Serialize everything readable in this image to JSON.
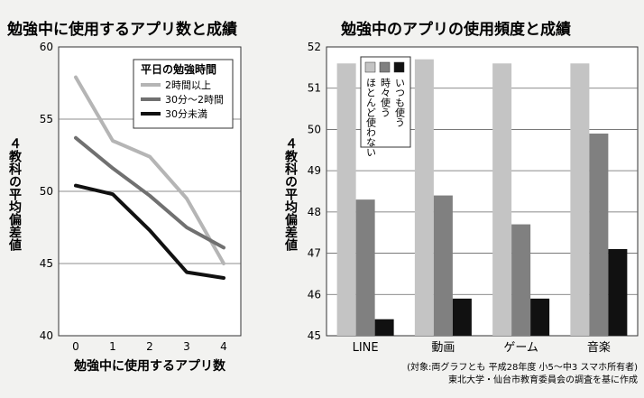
{
  "chart_data": [
    {
      "type": "line",
      "title": "勉強中に使用するアプリ数と成績",
      "xlabel": "勉強中に使用するアプリ数",
      "ylabel": "４教科の平均偏差値",
      "x": [
        "0",
        "1",
        "2",
        "3",
        "4"
      ],
      "y_ticks": [
        "40",
        "45",
        "50",
        "55",
        "60"
      ],
      "ylim": [
        40,
        60
      ],
      "legend_title": "平日の勉強時間",
      "series": [
        {
          "name": "2時間以上",
          "color": "#b5b5b5",
          "values": [
            57.9,
            53.5,
            52.4,
            49.5,
            45.0
          ]
        },
        {
          "name": "30分～2時間",
          "color": "#707070",
          "values": [
            53.7,
            51.6,
            49.7,
            47.5,
            46.1
          ]
        },
        {
          "name": "30分未満",
          "color": "#111111",
          "values": [
            50.4,
            49.8,
            47.3,
            44.4,
            44.0
          ]
        }
      ]
    },
    {
      "type": "bar",
      "title": "勉強中のアプリの使用頻度と成績",
      "ylabel": "４教科の平均偏差値",
      "categories": [
        "LINE",
        "動画",
        "ゲーム",
        "音楽"
      ],
      "y_ticks": [
        "45",
        "46",
        "47",
        "48",
        "49",
        "50",
        "51",
        "52"
      ],
      "ylim": [
        45,
        52
      ],
      "series": [
        {
          "name": "ほとんど使わない",
          "color": "#c4c4c4",
          "values": [
            51.6,
            51.7,
            51.6,
            51.6
          ]
        },
        {
          "name": "時々使う",
          "color": "#808080",
          "values": [
            48.3,
            48.4,
            47.7,
            49.9
          ]
        },
        {
          "name": "いつも使う",
          "color": "#111111",
          "values": [
            45.4,
            45.9,
            45.9,
            47.1
          ]
        }
      ]
    }
  ],
  "source_note": {
    "line1": "(対象:両グラフとも 平成28年度 小5～中3 スマホ所有者)",
    "line2": "東北大学・仙台市教育委員会の調査を基に作成"
  }
}
